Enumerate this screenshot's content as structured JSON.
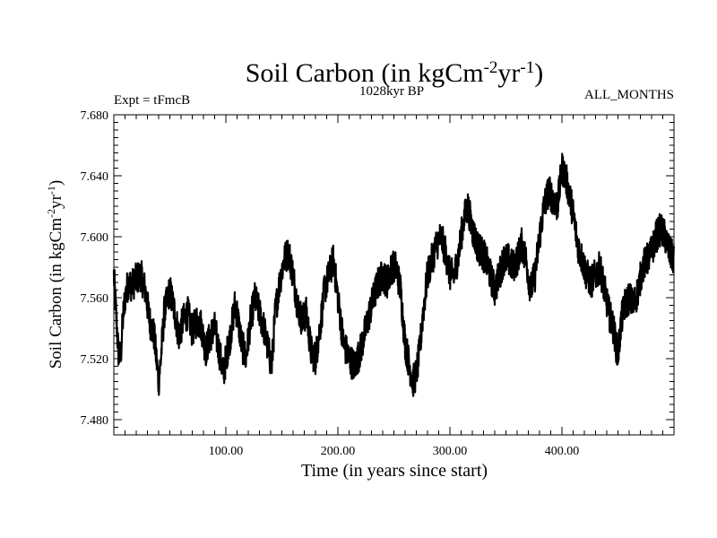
{
  "chart_data": {
    "type": "line",
    "title": "Soil Carbon (in kgCm",
    "title_sup1": "-2",
    "title_mid": "yr",
    "title_sup2": "-1",
    "title_end": ")",
    "subtitle_left": "Expt = tFmcB",
    "subtitle_center": "1028kyr BP",
    "subtitle_right": "ALL_MONTHS",
    "xlabel": "Time (in years since start)",
    "ylabel": "Soil Carbon (in kgCm",
    "ylabel_sup1": "-2",
    "ylabel_mid": "yr",
    "ylabel_sup2": "-1",
    "ylabel_end": ")",
    "xlim": [
      0,
      500
    ],
    "ylim": [
      7.47,
      7.68
    ],
    "x_ticks": [
      {
        "value": 100,
        "label": "100.00"
      },
      {
        "value": 200,
        "label": "200.00"
      },
      {
        "value": 300,
        "label": "300.00"
      },
      {
        "value": 400,
        "label": "400.00"
      }
    ],
    "y_ticks": [
      {
        "value": 7.48,
        "label": "7.480"
      },
      {
        "value": 7.52,
        "label": "7.520"
      },
      {
        "value": 7.56,
        "label": "7.560"
      },
      {
        "value": 7.6,
        "label": "7.600"
      },
      {
        "value": 7.64,
        "label": "7.640"
      },
      {
        "value": 7.68,
        "label": "7.680"
      }
    ],
    "series": [
      {
        "name": "Soil Carbon",
        "color": "#000000",
        "x": [
          0,
          2,
          4,
          6,
          8,
          10,
          13,
          16,
          20,
          24,
          28,
          32,
          36,
          40,
          42,
          45,
          50,
          55,
          58,
          62,
          66,
          70,
          74,
          78,
          82,
          86,
          90,
          94,
          98,
          100,
          104,
          108,
          110,
          114,
          118,
          122,
          126,
          130,
          134,
          138,
          141,
          144,
          148,
          152,
          156,
          160,
          164,
          168,
          172,
          176,
          180,
          184,
          188,
          192,
          196,
          200,
          205,
          210,
          215,
          220,
          225,
          230,
          235,
          240,
          244,
          248,
          252,
          256,
          260,
          264,
          267,
          270,
          273,
          276,
          280,
          284,
          288,
          292,
          296,
          300,
          304,
          308,
          312,
          316,
          320,
          324,
          328,
          332,
          336,
          340,
          344,
          348,
          352,
          356,
          360,
          364,
          368,
          372,
          376,
          380,
          384,
          388,
          392,
          396,
          400,
          403,
          406,
          410,
          414,
          418,
          422,
          426,
          430,
          434,
          438,
          442,
          446,
          448,
          450,
          453,
          456,
          460,
          464,
          468,
          472,
          476,
          480,
          484,
          488,
          492,
          496,
          500
        ],
        "y": [
          7.575,
          7.55,
          7.525,
          7.52,
          7.545,
          7.56,
          7.57,
          7.568,
          7.572,
          7.575,
          7.565,
          7.545,
          7.535,
          7.505,
          7.52,
          7.55,
          7.565,
          7.548,
          7.535,
          7.545,
          7.55,
          7.538,
          7.545,
          7.542,
          7.525,
          7.535,
          7.54,
          7.525,
          7.51,
          7.52,
          7.535,
          7.555,
          7.55,
          7.53,
          7.52,
          7.545,
          7.56,
          7.55,
          7.54,
          7.525,
          7.515,
          7.55,
          7.57,
          7.585,
          7.59,
          7.575,
          7.555,
          7.545,
          7.55,
          7.525,
          7.52,
          7.54,
          7.565,
          7.575,
          7.585,
          7.56,
          7.53,
          7.52,
          7.515,
          7.525,
          7.54,
          7.555,
          7.568,
          7.575,
          7.57,
          7.58,
          7.58,
          7.565,
          7.53,
          7.515,
          7.505,
          7.51,
          7.525,
          7.55,
          7.575,
          7.585,
          7.595,
          7.6,
          7.59,
          7.575,
          7.575,
          7.59,
          7.61,
          7.62,
          7.605,
          7.595,
          7.59,
          7.585,
          7.575,
          7.565,
          7.575,
          7.585,
          7.585,
          7.58,
          7.585,
          7.595,
          7.585,
          7.565,
          7.575,
          7.6,
          7.62,
          7.63,
          7.625,
          7.62,
          7.645,
          7.64,
          7.63,
          7.615,
          7.595,
          7.585,
          7.575,
          7.57,
          7.575,
          7.58,
          7.565,
          7.55,
          7.54,
          7.53,
          7.522,
          7.545,
          7.555,
          7.56,
          7.555,
          7.565,
          7.58,
          7.585,
          7.59,
          7.6,
          7.605,
          7.6,
          7.59,
          7.585
        ]
      }
    ]
  }
}
